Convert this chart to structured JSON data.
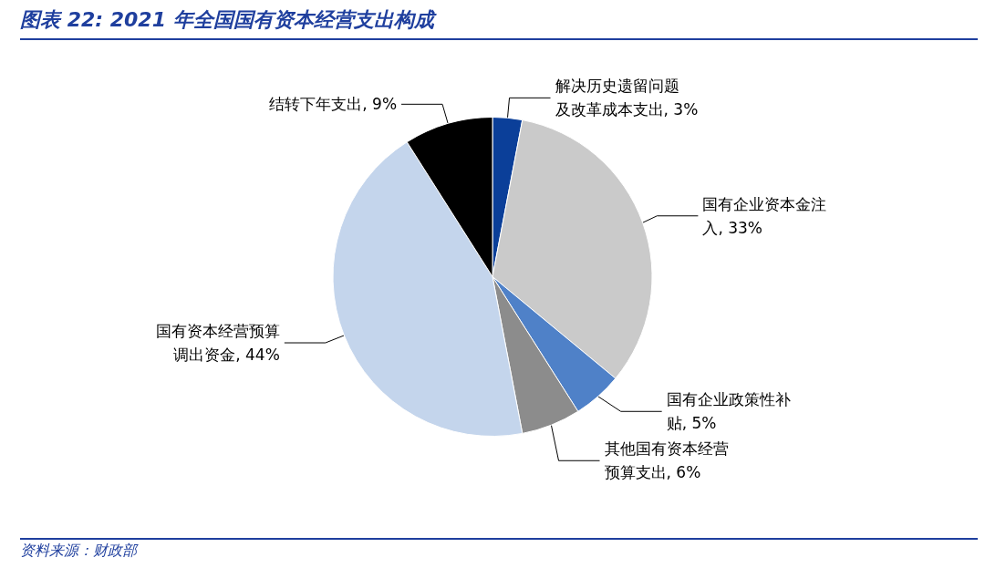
{
  "chart_data": {
    "type": "pie",
    "title": "图表 22:  2021 年全国国有资本经营支出构成",
    "categories": [
      "解决历史遗留问题及改革成本支出",
      "国有企业资本金注入",
      "国有企业政策性补贴",
      "其他国有资本经营预算支出",
      "国有资本经营预算调出资金",
      "结转下年支出"
    ],
    "values": [
      3,
      33,
      5,
      6,
      44,
      9
    ],
    "value_labels": [
      "3%",
      "33%",
      "5%",
      "6%",
      "44%",
      "9%"
    ],
    "colors": [
      "#0b3f99",
      "#cacaca",
      "#4f81c8",
      "#8c8c8c",
      "#c4d5ec",
      "#000000"
    ],
    "legend": false,
    "annotations": [
      "资料来源：财政部"
    ]
  }
}
